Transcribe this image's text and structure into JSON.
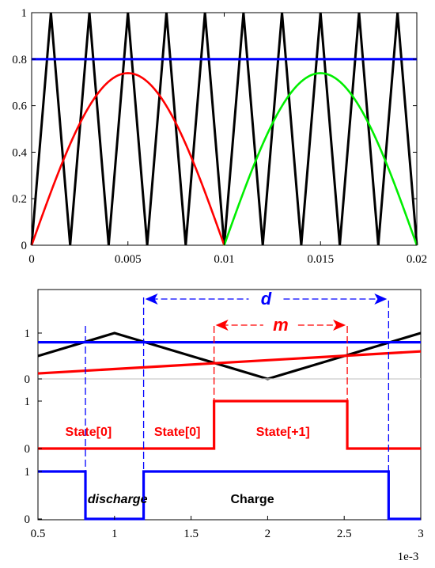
{
  "chart_data": [
    {
      "type": "line",
      "title": "",
      "xlabel": "",
      "ylabel": "",
      "xlim": [
        0,
        0.02
      ],
      "ylim": [
        0,
        1
      ],
      "x_ticks": [
        "0",
        "0.005",
        "0.01",
        "0.015",
        "0.02"
      ],
      "y_ticks": [
        "0",
        "0.2",
        "0.4",
        "0.6",
        "0.8",
        "1"
      ],
      "grid": false,
      "series": [
        {
          "color": "#000000",
          "style": "triangle carrier",
          "x": [
            0,
            0.001,
            0.002,
            0.003,
            0.004,
            0.005,
            0.006,
            0.007,
            0.008,
            0.009,
            0.01,
            0.011,
            0.012,
            0.013,
            0.014,
            0.015,
            0.016,
            0.017,
            0.018,
            0.019,
            0.02
          ],
          "values": [
            0,
            1,
            0,
            1,
            0,
            1,
            0,
            1,
            0,
            1,
            0,
            1,
            0,
            1,
            0,
            1,
            0,
            1,
            0,
            1,
            0
          ]
        },
        {
          "color": "#0000ff",
          "style": "constant",
          "x": [
            0,
            0.02
          ],
          "values": [
            0.8,
            0.8
          ]
        },
        {
          "color": "#ff0000",
          "style": "half sine",
          "x_range": [
            0,
            0.01
          ],
          "peak": 0.74
        },
        {
          "color": "#00ee00",
          "style": "half sine",
          "x_range": [
            0.01,
            0.02
          ],
          "peak": 0.74
        }
      ]
    },
    {
      "type": "line",
      "title": "",
      "xlim": [
        0.5,
        3
      ],
      "x_ticks": [
        "0.5",
        "1",
        "1.5",
        "2",
        "2.5",
        "3"
      ],
      "x_exponent_label": "1e-3",
      "grid": false,
      "panels": [
        {
          "y_ticks": [
            "0",
            "1"
          ],
          "series": [
            {
              "color": "#000000",
              "x": [
                0.5,
                1,
                2,
                3
              ],
              "values": [
                0.5,
                1,
                0,
                1
              ]
            },
            {
              "color": "#0000ff",
              "x": [
                0.5,
                3
              ],
              "values": [
                0.8,
                0.8
              ]
            },
            {
              "color": "#ff0000",
              "x": [
                0.5,
                3
              ],
              "values": [
                0.12,
                0.6
              ]
            },
            {
              "color": "#cccccc",
              "x": [
                0.5,
                3
              ],
              "values": [
                0,
                0
              ]
            }
          ]
        },
        {
          "y_ticks": [
            "0",
            "1"
          ],
          "series": [
            {
              "color": "#ff0000",
              "x": [
                0.5,
                1.65,
                1.65,
                2.52,
                2.52,
                3
              ],
              "values": [
                0,
                0,
                1,
                1,
                0,
                0
              ]
            }
          ],
          "labels": [
            {
              "text": "State[0]",
              "x": 0.83
            },
            {
              "text": "State[0]",
              "x": 1.41
            },
            {
              "text": "State[+1]",
              "x": 2.1
            }
          ]
        },
        {
          "y_ticks": [
            "0",
            "1"
          ],
          "series": [
            {
              "color": "#0000ff",
              "x": [
                0.5,
                0.81,
                0.81,
                1.19,
                1.19,
                2.79,
                2.79,
                3
              ],
              "values": [
                1,
                1,
                0,
                0,
                1,
                1,
                0,
                0
              ]
            }
          ],
          "labels": [
            {
              "text": "discharge",
              "x": 1.02
            },
            {
              "text": "Charge",
              "x": 1.9
            }
          ]
        }
      ],
      "dashed_markers": [
        {
          "color": "#0000ff",
          "x": 0.81
        },
        {
          "color": "#0000ff",
          "x": 1.19
        },
        {
          "color": "#0000ff",
          "x": 2.79
        },
        {
          "color": "#ff0000",
          "x": 1.65
        },
        {
          "color": "#ff0000",
          "x": 2.52
        }
      ],
      "annotations": [
        {
          "label": "d",
          "color": "#0000ff",
          "from": 1.19,
          "to": 2.79
        },
        {
          "label": "m",
          "color": "#ff0000",
          "from": 1.65,
          "to": 2.52
        }
      ]
    }
  ]
}
